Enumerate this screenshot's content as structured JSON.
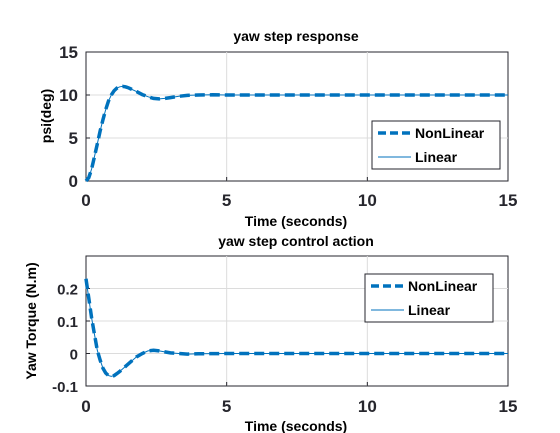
{
  "chart_data": [
    {
      "type": "line",
      "title": "yaw step response",
      "xlabel": "Time (seconds)",
      "ylabel": "psi(deg)",
      "xlim": [
        0,
        15
      ],
      "ylim": [
        0,
        15
      ],
      "xticks": [
        "0",
        "5",
        "10",
        "15"
      ],
      "yticks": [
        "0",
        "5",
        "10",
        "15"
      ],
      "grid": true,
      "legend": "right",
      "series": [
        {
          "name": "NonLinear",
          "style": "dashed",
          "color": "#0072bd",
          "x": [
            0,
            0.1,
            0.2,
            0.3,
            0.4,
            0.5,
            0.6,
            0.7,
            0.8,
            0.9,
            1.0,
            1.1,
            1.2,
            1.3,
            1.4,
            1.5,
            1.6,
            1.8,
            2.0,
            2.2,
            2.4,
            2.6,
            2.8,
            3.0,
            3.3,
            3.6,
            4.0,
            4.5,
            5.0,
            6.0,
            8.0,
            10.0,
            12.0,
            15.0
          ],
          "values": [
            0,
            0.4,
            1.4,
            2.8,
            4.3,
            5.8,
            7.1,
            8.3,
            9.3,
            10.0,
            10.5,
            10.8,
            10.95,
            11.0,
            10.95,
            10.85,
            10.7,
            10.4,
            10.05,
            9.8,
            9.6,
            9.55,
            9.6,
            9.7,
            9.85,
            9.95,
            10.0,
            10.02,
            10.0,
            10.0,
            10.0,
            10.0,
            10.0,
            10.0
          ]
        },
        {
          "name": "Linear",
          "style": "solid",
          "color": "#0072bd",
          "x": [
            0,
            0.1,
            0.2,
            0.3,
            0.4,
            0.5,
            0.6,
            0.7,
            0.8,
            0.9,
            1.0,
            1.1,
            1.2,
            1.3,
            1.4,
            1.5,
            1.6,
            1.8,
            2.0,
            2.2,
            2.4,
            2.6,
            2.8,
            3.0,
            3.3,
            3.6,
            4.0,
            4.5,
            5.0,
            6.0,
            8.0,
            10.0,
            12.0,
            15.0
          ],
          "values": [
            0,
            0.4,
            1.4,
            2.8,
            4.3,
            5.8,
            7.1,
            8.3,
            9.3,
            10.0,
            10.5,
            10.8,
            10.95,
            11.0,
            10.95,
            10.85,
            10.7,
            10.4,
            10.05,
            9.8,
            9.6,
            9.55,
            9.6,
            9.7,
            9.85,
            9.95,
            10.0,
            10.02,
            10.0,
            10.0,
            10.0,
            10.0,
            10.0,
            10.0
          ]
        }
      ]
    },
    {
      "type": "line",
      "title": "yaw step control action",
      "xlabel": "Time (seconds)",
      "ylabel": "Yaw Torque (N.m)",
      "xlim": [
        0,
        15
      ],
      "ylim": [
        -0.1,
        0.3
      ],
      "xticks": [
        "0",
        "5",
        "10",
        "15"
      ],
      "yticks": [
        "-0.1",
        "0",
        "0.1",
        "0.2"
      ],
      "ytickvals": [
        -0.1,
        0,
        0.1,
        0.2
      ],
      "grid": true,
      "legend": "top-right",
      "series": [
        {
          "name": "NonLinear",
          "style": "dashed",
          "color": "#0072bd",
          "x": [
            0,
            0.1,
            0.2,
            0.3,
            0.4,
            0.5,
            0.6,
            0.7,
            0.8,
            0.9,
            1.0,
            1.1,
            1.2,
            1.4,
            1.6,
            1.8,
            2.0,
            2.2,
            2.4,
            2.6,
            2.8,
            3.0,
            3.3,
            3.6,
            4.0,
            5.0,
            8.0,
            10.0,
            15.0
          ],
          "values": [
            0.23,
            0.17,
            0.11,
            0.06,
            0.01,
            -0.02,
            -0.045,
            -0.06,
            -0.068,
            -0.07,
            -0.068,
            -0.062,
            -0.055,
            -0.04,
            -0.025,
            -0.01,
            0.0,
            0.008,
            0.01,
            0.008,
            0.005,
            0.002,
            0.0,
            -0.002,
            -0.001,
            0.0,
            0.0,
            0.0,
            0.0
          ]
        },
        {
          "name": "Linear",
          "style": "solid",
          "color": "#0072bd",
          "x": [
            0,
            0.1,
            0.2,
            0.3,
            0.4,
            0.5,
            0.6,
            0.7,
            0.8,
            0.9,
            1.0,
            1.1,
            1.2,
            1.4,
            1.6,
            1.8,
            2.0,
            2.2,
            2.4,
            2.6,
            2.8,
            3.0,
            3.3,
            3.6,
            4.0,
            5.0,
            8.0,
            10.0,
            15.0
          ],
          "values": [
            0.23,
            0.17,
            0.11,
            0.06,
            0.01,
            -0.02,
            -0.045,
            -0.06,
            -0.068,
            -0.07,
            -0.068,
            -0.062,
            -0.055,
            -0.04,
            -0.025,
            -0.01,
            0.0,
            0.008,
            0.01,
            0.008,
            0.005,
            0.002,
            0.0,
            -0.002,
            -0.001,
            0.0,
            0.0,
            0.0,
            0.0
          ]
        }
      ]
    }
  ]
}
